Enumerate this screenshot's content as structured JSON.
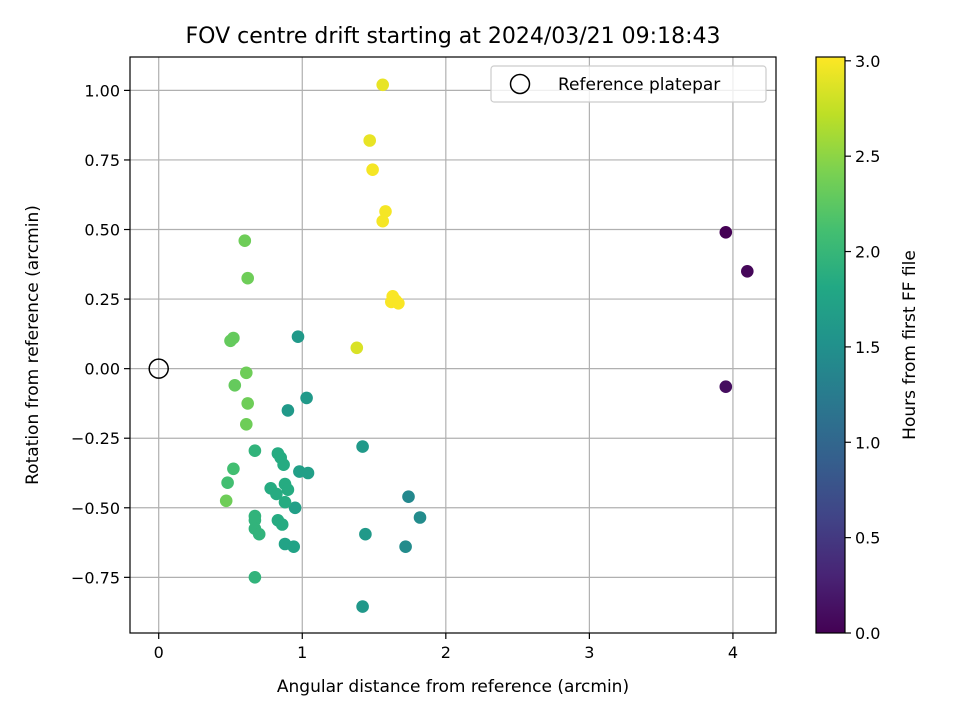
{
  "chart_data": {
    "type": "scatter",
    "title": "FOV centre drift starting at 2024/03/21 09:18:43",
    "xlabel": "Angular distance from reference (arcmin)",
    "ylabel": "Rotation from reference (arcmin)",
    "xlim": [
      -0.2,
      4.3
    ],
    "ylim": [
      -0.95,
      1.12
    ],
    "xticks": [
      0,
      1,
      2,
      3,
      4
    ],
    "xtick_labels": [
      "0",
      "1",
      "2",
      "3",
      "4"
    ],
    "yticks": [
      -0.75,
      -0.5,
      -0.25,
      0.0,
      0.25,
      0.5,
      0.75,
      1.0
    ],
    "ytick_labels": [
      "−0.75",
      "−0.50",
      "−0.25",
      "0.00",
      "0.25",
      "0.50",
      "0.75",
      "1.00"
    ],
    "grid": true,
    "legend": {
      "position": "top-right",
      "entries": [
        {
          "label": "Reference platepar",
          "marker": "open-circle"
        }
      ]
    },
    "reference_point": {
      "x": 0.0,
      "y": 0.0
    },
    "colorbar": {
      "label": "Hours from first FF file",
      "colormap": "viridis",
      "range": [
        0.0,
        3.02
      ],
      "ticks": [
        0.0,
        0.5,
        1.0,
        1.5,
        2.0,
        2.5,
        3.0
      ],
      "tick_labels": [
        "0.0",
        "0.5",
        "1.0",
        "1.5",
        "2.0",
        "2.5",
        "3.0"
      ]
    },
    "points": [
      {
        "x": 3.95,
        "y": 0.49,
        "c": 0.0
      },
      {
        "x": 4.1,
        "y": 0.35,
        "c": 0.05
      },
      {
        "x": 3.95,
        "y": -0.065,
        "c": 0.1
      },
      {
        "x": 1.74,
        "y": -0.46,
        "c": 1.4
      },
      {
        "x": 1.82,
        "y": -0.535,
        "c": 1.45
      },
      {
        "x": 1.72,
        "y": -0.64,
        "c": 1.45
      },
      {
        "x": 1.42,
        "y": -0.855,
        "c": 1.6
      },
      {
        "x": 1.42,
        "y": -0.28,
        "c": 1.62
      },
      {
        "x": 1.44,
        "y": -0.595,
        "c": 1.62
      },
      {
        "x": 0.97,
        "y": 0.115,
        "c": 1.62
      },
      {
        "x": 1.03,
        "y": -0.105,
        "c": 1.62
      },
      {
        "x": 0.9,
        "y": -0.15,
        "c": 1.62
      },
      {
        "x": 0.98,
        "y": -0.37,
        "c": 1.7
      },
      {
        "x": 1.04,
        "y": -0.375,
        "c": 1.7
      },
      {
        "x": 0.95,
        "y": -0.5,
        "c": 1.7
      },
      {
        "x": 0.88,
        "y": -0.63,
        "c": 1.75
      },
      {
        "x": 0.94,
        "y": -0.64,
        "c": 1.75
      },
      {
        "x": 0.83,
        "y": -0.305,
        "c": 1.85
      },
      {
        "x": 0.85,
        "y": -0.32,
        "c": 1.85
      },
      {
        "x": 0.87,
        "y": -0.345,
        "c": 1.85
      },
      {
        "x": 0.88,
        "y": -0.415,
        "c": 1.85
      },
      {
        "x": 0.9,
        "y": -0.435,
        "c": 1.85
      },
      {
        "x": 0.78,
        "y": -0.43,
        "c": 1.85
      },
      {
        "x": 0.82,
        "y": -0.45,
        "c": 1.85
      },
      {
        "x": 0.88,
        "y": -0.48,
        "c": 1.85
      },
      {
        "x": 0.83,
        "y": -0.545,
        "c": 1.85
      },
      {
        "x": 0.86,
        "y": -0.56,
        "c": 1.85
      },
      {
        "x": 0.67,
        "y": -0.295,
        "c": 1.95
      },
      {
        "x": 0.67,
        "y": -0.53,
        "c": 1.95
      },
      {
        "x": 0.67,
        "y": -0.545,
        "c": 1.95
      },
      {
        "x": 0.67,
        "y": -0.575,
        "c": 1.95
      },
      {
        "x": 0.7,
        "y": -0.595,
        "c": 1.95
      },
      {
        "x": 0.67,
        "y": -0.75,
        "c": 1.95
      },
      {
        "x": 0.52,
        "y": -0.36,
        "c": 2.1
      },
      {
        "x": 0.48,
        "y": -0.41,
        "c": 2.1
      },
      {
        "x": 0.47,
        "y": -0.475,
        "c": 2.35
      },
      {
        "x": 0.5,
        "y": 0.1,
        "c": 2.3
      },
      {
        "x": 0.52,
        "y": 0.11,
        "c": 2.3
      },
      {
        "x": 0.53,
        "y": -0.06,
        "c": 2.3
      },
      {
        "x": 0.61,
        "y": -0.015,
        "c": 2.35
      },
      {
        "x": 0.62,
        "y": -0.125,
        "c": 2.35
      },
      {
        "x": 0.61,
        "y": -0.2,
        "c": 2.35
      },
      {
        "x": 0.62,
        "y": 0.325,
        "c": 2.35
      },
      {
        "x": 0.6,
        "y": 0.46,
        "c": 2.35
      },
      {
        "x": 1.38,
        "y": 0.075,
        "c": 2.85
      },
      {
        "x": 1.56,
        "y": 1.02,
        "c": 2.92
      },
      {
        "x": 1.47,
        "y": 0.82,
        "c": 2.92
      },
      {
        "x": 1.49,
        "y": 0.715,
        "c": 2.98
      },
      {
        "x": 1.58,
        "y": 0.565,
        "c": 2.98
      },
      {
        "x": 1.56,
        "y": 0.53,
        "c": 2.98
      },
      {
        "x": 1.62,
        "y": 0.24,
        "c": 3.0
      },
      {
        "x": 1.63,
        "y": 0.26,
        "c": 3.0
      },
      {
        "x": 1.65,
        "y": 0.245,
        "c": 3.0
      },
      {
        "x": 1.67,
        "y": 0.235,
        "c": 3.0
      }
    ]
  }
}
